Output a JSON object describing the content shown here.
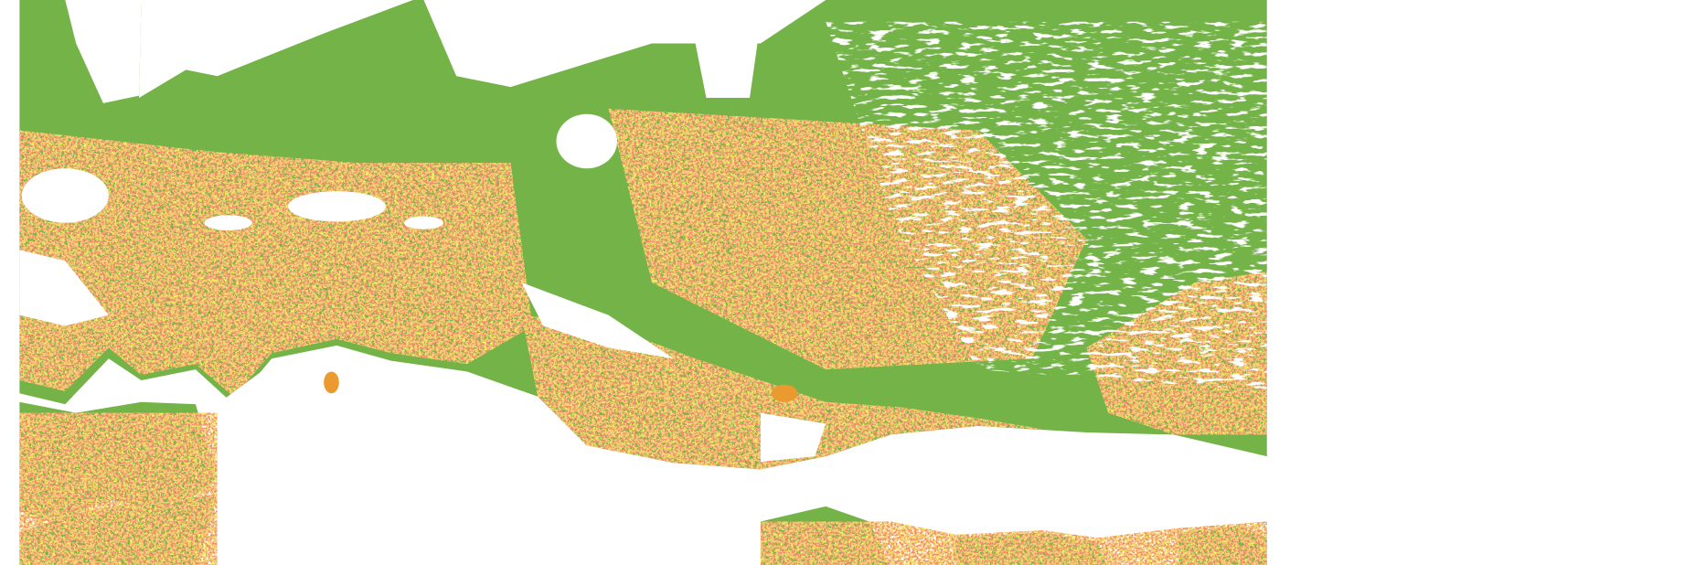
{
  "map": {
    "background_color": "#ffffff",
    "classes": [
      {
        "color": "#74b347"
      },
      {
        "color": "#e3dd1c"
      },
      {
        "color": "#ea9a2e"
      },
      {
        "color": "#e0452a"
      }
    ],
    "no_data_color": "#ffffff"
  }
}
